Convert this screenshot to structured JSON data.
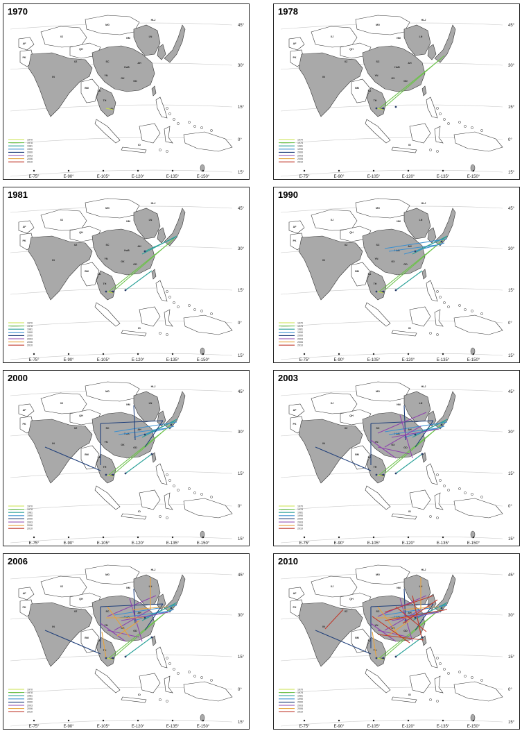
{
  "panels": [
    {
      "year": "1970",
      "active": 1
    },
    {
      "year": "1978",
      "active": 2
    },
    {
      "year": "1981",
      "active": 3
    },
    {
      "year": "1990",
      "active": 4
    },
    {
      "year": "2000",
      "active": 5
    },
    {
      "year": "2003",
      "active": 6
    },
    {
      "year": "2006",
      "active": 7
    },
    {
      "year": "2010",
      "active": 8
    }
  ],
  "latitudes": [
    "45°",
    "30°",
    "15°",
    "0°",
    "15°"
  ],
  "longitudes": [
    "E-75°",
    "E-90°",
    "E-105°",
    "E-120°",
    "E-135°",
    "E-150°"
  ],
  "legend": [
    {
      "label": "1970",
      "color": "#c8e04a"
    },
    {
      "label": "1978",
      "color": "#6cc24a"
    },
    {
      "label": "1981",
      "color": "#2aa198"
    },
    {
      "label": "1990",
      "color": "#3a8fd0"
    },
    {
      "label": "2000",
      "color": "#1f3f7a"
    },
    {
      "label": "2003",
      "color": "#8e44ad"
    },
    {
      "label": "2006",
      "color": "#e6a23c"
    },
    {
      "label": "2010",
      "color": "#c0392b"
    }
  ],
  "region_labels": [
    "MG",
    "HLJ",
    "XJ",
    "NM",
    "LN",
    "AF",
    "QH",
    "PK",
    "XZ",
    "SC",
    "IN",
    "HuB",
    "AH",
    "BM",
    "YN",
    "GX",
    "GD",
    "LA",
    "TH",
    "VN",
    "ID"
  ],
  "map_colors": {
    "highlight": "#a9a9a9",
    "land": "#ffffff",
    "stroke": "#333333"
  }
}
